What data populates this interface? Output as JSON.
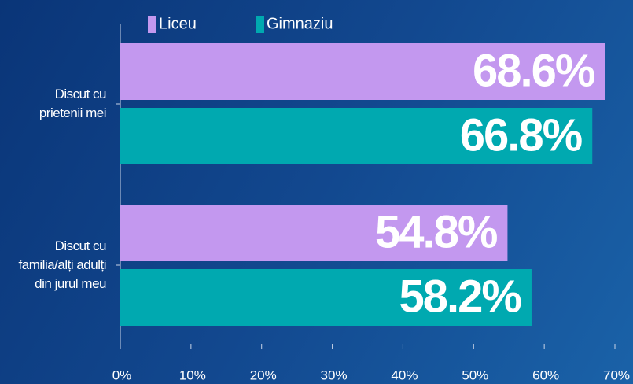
{
  "chart_data": {
    "type": "barh",
    "categories": [
      "Discut cu prietenii mei",
      "Discut cu familia/alți adulți din jurul meu"
    ],
    "series": [
      {
        "name": "Liceu",
        "color": "#c398ef",
        "values": [
          68.6,
          54.8
        ],
        "value_labels": [
          "68.6%",
          "54.8%"
        ]
      },
      {
        "name": "Gimnaziu",
        "color": "#00a9b0",
        "values": [
          66.8,
          58.2
        ],
        "value_labels": [
          "66.8%",
          "58.2%"
        ]
      }
    ],
    "xlim": [
      0,
      70
    ],
    "xticks": [
      {
        "value": 0,
        "label": "0%"
      },
      {
        "value": 10,
        "label": "10%"
      },
      {
        "value": 20,
        "label": "20%"
      },
      {
        "value": 30,
        "label": "30%"
      },
      {
        "value": 40,
        "label": "40%"
      },
      {
        "value": 50,
        "label": "50%"
      },
      {
        "value": 60,
        "label": "60%"
      },
      {
        "value": 70,
        "label": "70%"
      }
    ],
    "legend": "top"
  }
}
